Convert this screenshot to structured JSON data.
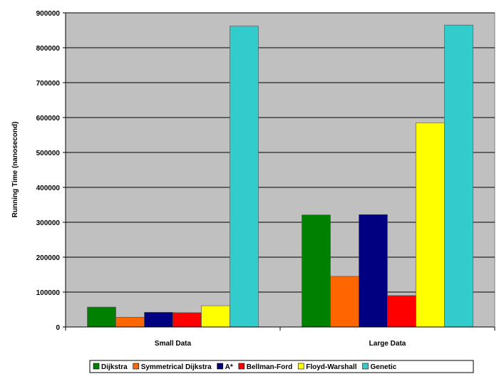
{
  "chart_data": {
    "type": "bar",
    "title": "",
    "xlabel": "",
    "ylabel": "Running Time (nanosecond)",
    "ylim": [
      0,
      900000
    ],
    "yticks": [
      0,
      100000,
      200000,
      300000,
      400000,
      500000,
      600000,
      700000,
      800000,
      900000
    ],
    "yticks_text": [
      "0",
      "100000",
      "200000",
      "300000",
      "400000",
      "500000",
      "600000",
      "700000",
      "800000",
      "900000"
    ],
    "grid": true,
    "plot_background": "#c0c0c0",
    "legend_position": "bottom",
    "categories": [
      "Small Data",
      "Large Data"
    ],
    "series": [
      {
        "name": "Dijkstra",
        "color": "#008000",
        "values": [
          57000,
          321000
        ]
      },
      {
        "name": "Symmetrical Dijkstra",
        "color": "#ff6600",
        "values": [
          28000,
          145000
        ]
      },
      {
        "name": "A*",
        "color": "#000080",
        "values": [
          42000,
          322000
        ]
      },
      {
        "name": "Bellman-Ford",
        "color": "#ff0000",
        "values": [
          41000,
          90000
        ]
      },
      {
        "name": "Floyd-Warshall",
        "color": "#ffff00",
        "values": [
          61000,
          585000
        ]
      },
      {
        "name": "Genetic",
        "color": "#33cccc",
        "values": [
          862000,
          865000
        ]
      }
    ]
  }
}
